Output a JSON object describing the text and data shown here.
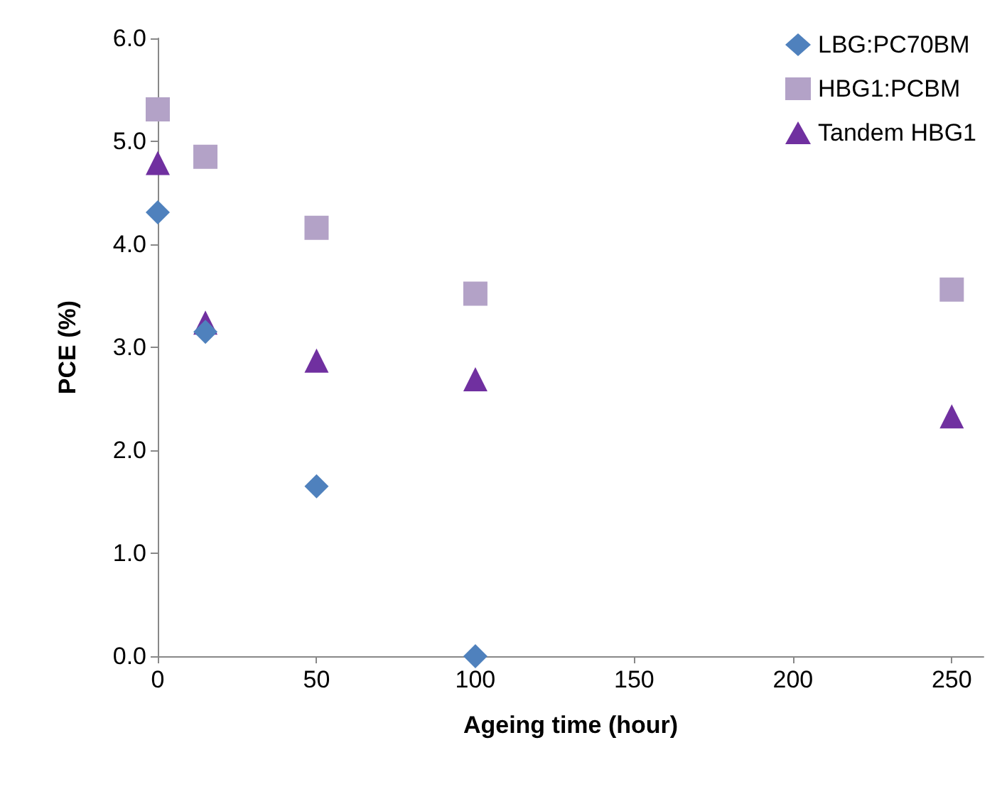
{
  "chart_data": {
    "type": "scatter",
    "xlabel": "Ageing time (hour)",
    "ylabel": "PCE (%)",
    "xlim": [
      0,
      260
    ],
    "xticks": [
      0,
      50,
      100,
      150,
      200,
      250
    ],
    "ylim": [
      0,
      6
    ],
    "yticks": [
      {
        "value": 0,
        "label": "0.0"
      },
      {
        "value": 1,
        "label": "1.0"
      },
      {
        "value": 2,
        "label": "2.0"
      },
      {
        "value": 3,
        "label": "3.0"
      },
      {
        "value": 4,
        "label": "4.0"
      },
      {
        "value": 5,
        "label": "5.0"
      },
      {
        "value": 6,
        "label": "6.0"
      }
    ],
    "grid": false,
    "legend": "top right",
    "series": [
      {
        "name": "LBG:PC70BM",
        "color": "#4f81bd",
        "marker": "diamond",
        "x": [
          0,
          15,
          50,
          100
        ],
        "values": [
          4.31,
          3.15,
          1.65,
          0.0
        ]
      },
      {
        "name": "HBG1:PCBM",
        "color": "#b3a2c7",
        "marker": "square",
        "x": [
          0,
          15,
          50,
          100,
          250
        ],
        "values": [
          5.31,
          4.85,
          4.16,
          3.52,
          3.56
        ]
      },
      {
        "name": "Tandem HBG1",
        "color": "#7030a0",
        "marker": "triangle",
        "x": [
          0,
          15,
          50,
          100,
          250
        ],
        "values": [
          4.79,
          3.24,
          2.87,
          2.69,
          2.33
        ]
      }
    ]
  }
}
